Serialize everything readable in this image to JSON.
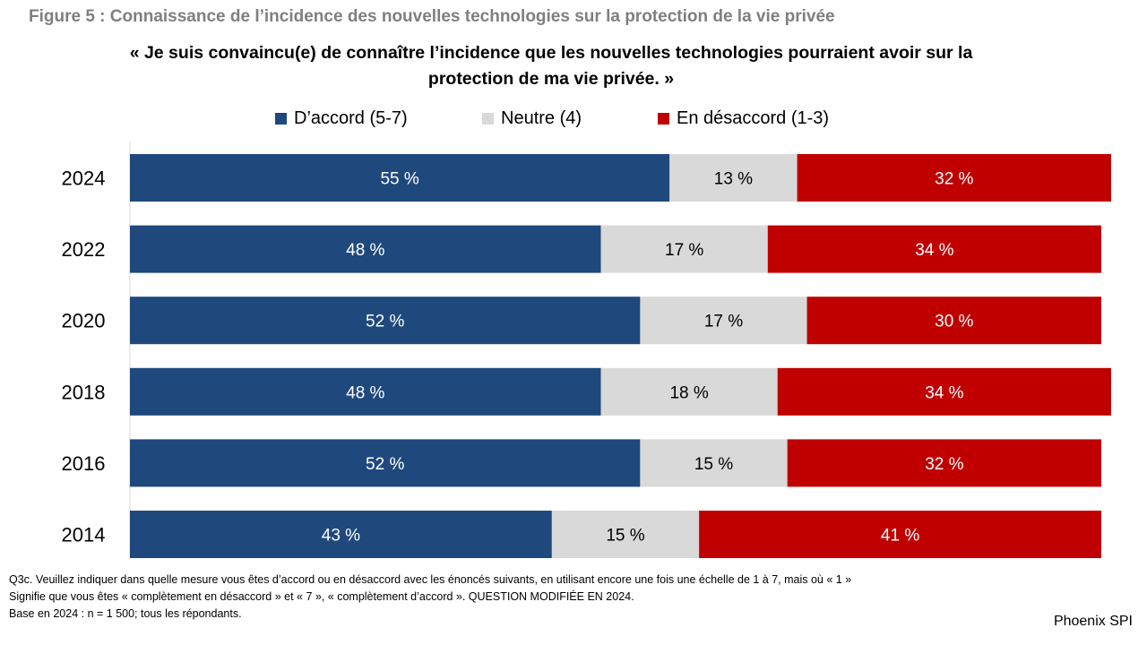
{
  "figure_title": "Figure 5 : Connaissance de l’incidence des nouvelles technologies sur la protection de la vie privée",
  "question_line1": "« Je suis convaincu(e) de connaître l’incidence que les nouvelles technologies pourraient avoir sur la",
  "question_line2": "protection de ma vie privée. »",
  "legend": [
    {
      "label": "D’accord (5-7)",
      "color": "#1f497d"
    },
    {
      "label": "Neutre (4)",
      "color": "#d9d9d9"
    },
    {
      "label": "En désaccord (1-3)",
      "color": "#c00000"
    }
  ],
  "chart_data": {
    "type": "bar",
    "orientation": "horizontal",
    "stacked": true,
    "categories": [
      "2024",
      "2022",
      "2020",
      "2018",
      "2016",
      "2014"
    ],
    "series": [
      {
        "name": "D’accord (5-7)",
        "color": "#1f497d",
        "values": [
          55,
          48,
          52,
          48,
          52,
          43
        ],
        "labels": [
          "55 %",
          "48 %",
          "52 %",
          "48 %",
          "52 %",
          "43 %"
        ],
        "label_color": "#ffffff"
      },
      {
        "name": "Neutre (4)",
        "color": "#d9d9d9",
        "values": [
          13,
          17,
          17,
          18,
          15,
          15
        ],
        "labels": [
          "13 %",
          "17 %",
          "17 %",
          "18 %",
          "15 %",
          "15 %"
        ],
        "label_color": "#000000"
      },
      {
        "name": "En désaccord (1-3)",
        "color": "#c00000",
        "values": [
          32,
          34,
          30,
          34,
          32,
          41
        ],
        "labels": [
          "32 %",
          "34 %",
          "30 %",
          "34 %",
          "32 %",
          "41 %"
        ],
        "label_color": "#ffffff"
      }
    ],
    "legend_position": "top",
    "grid": false
  },
  "notes": [
    "Q3c. Veuillez indiquer dans quelle mesure vous êtes d’accord ou en désaccord avec les énoncés suivants, en utilisant encore une fois une échelle de 1 à 7, mais où « 1 »",
    "Signifie que vous êtes « complètement en désaccord » et « 7 », « complètement d’accord ». QUESTION MODIFIÉE EN 2024.",
    "Base en 2024 : n = 1 500; tous les répondants."
  ],
  "brand": "Phoenix SPI"
}
